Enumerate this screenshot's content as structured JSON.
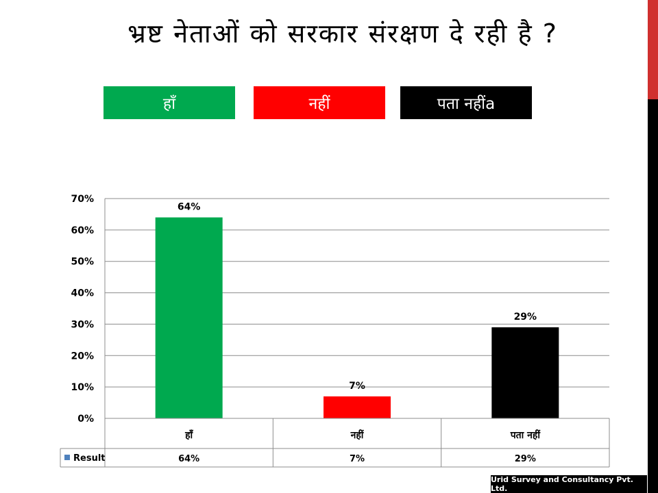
{
  "title": "भ्रष्ट नेताओं को सरकार संरक्षण दे रही है ?",
  "legend": [
    {
      "label": "हाँ",
      "color": "#00a94f"
    },
    {
      "label": "नहीं",
      "color": "#ff0000"
    },
    {
      "label": "पता नहींa",
      "color": "#000000"
    }
  ],
  "chart_data": {
    "type": "bar",
    "categories": [
      "हाँ",
      "नहीं",
      "पता नहीं"
    ],
    "series": [
      {
        "name": "Result",
        "values": [
          64,
          7,
          29
        ]
      }
    ],
    "colors": [
      "#00a94f",
      "#ff0000",
      "#000000"
    ],
    "data_labels": [
      "64%",
      "7%",
      "29%"
    ],
    "y_ticks": [
      "0%",
      "10%",
      "20%",
      "30%",
      "40%",
      "50%",
      "60%",
      "70%"
    ],
    "ylim": [
      0,
      70
    ],
    "grid": true,
    "table": {
      "series_label": "Result",
      "values": [
        "64%",
        "7%",
        "29%"
      ]
    }
  },
  "footer": "Urid Survey and Consultancy Pvt. Ltd."
}
